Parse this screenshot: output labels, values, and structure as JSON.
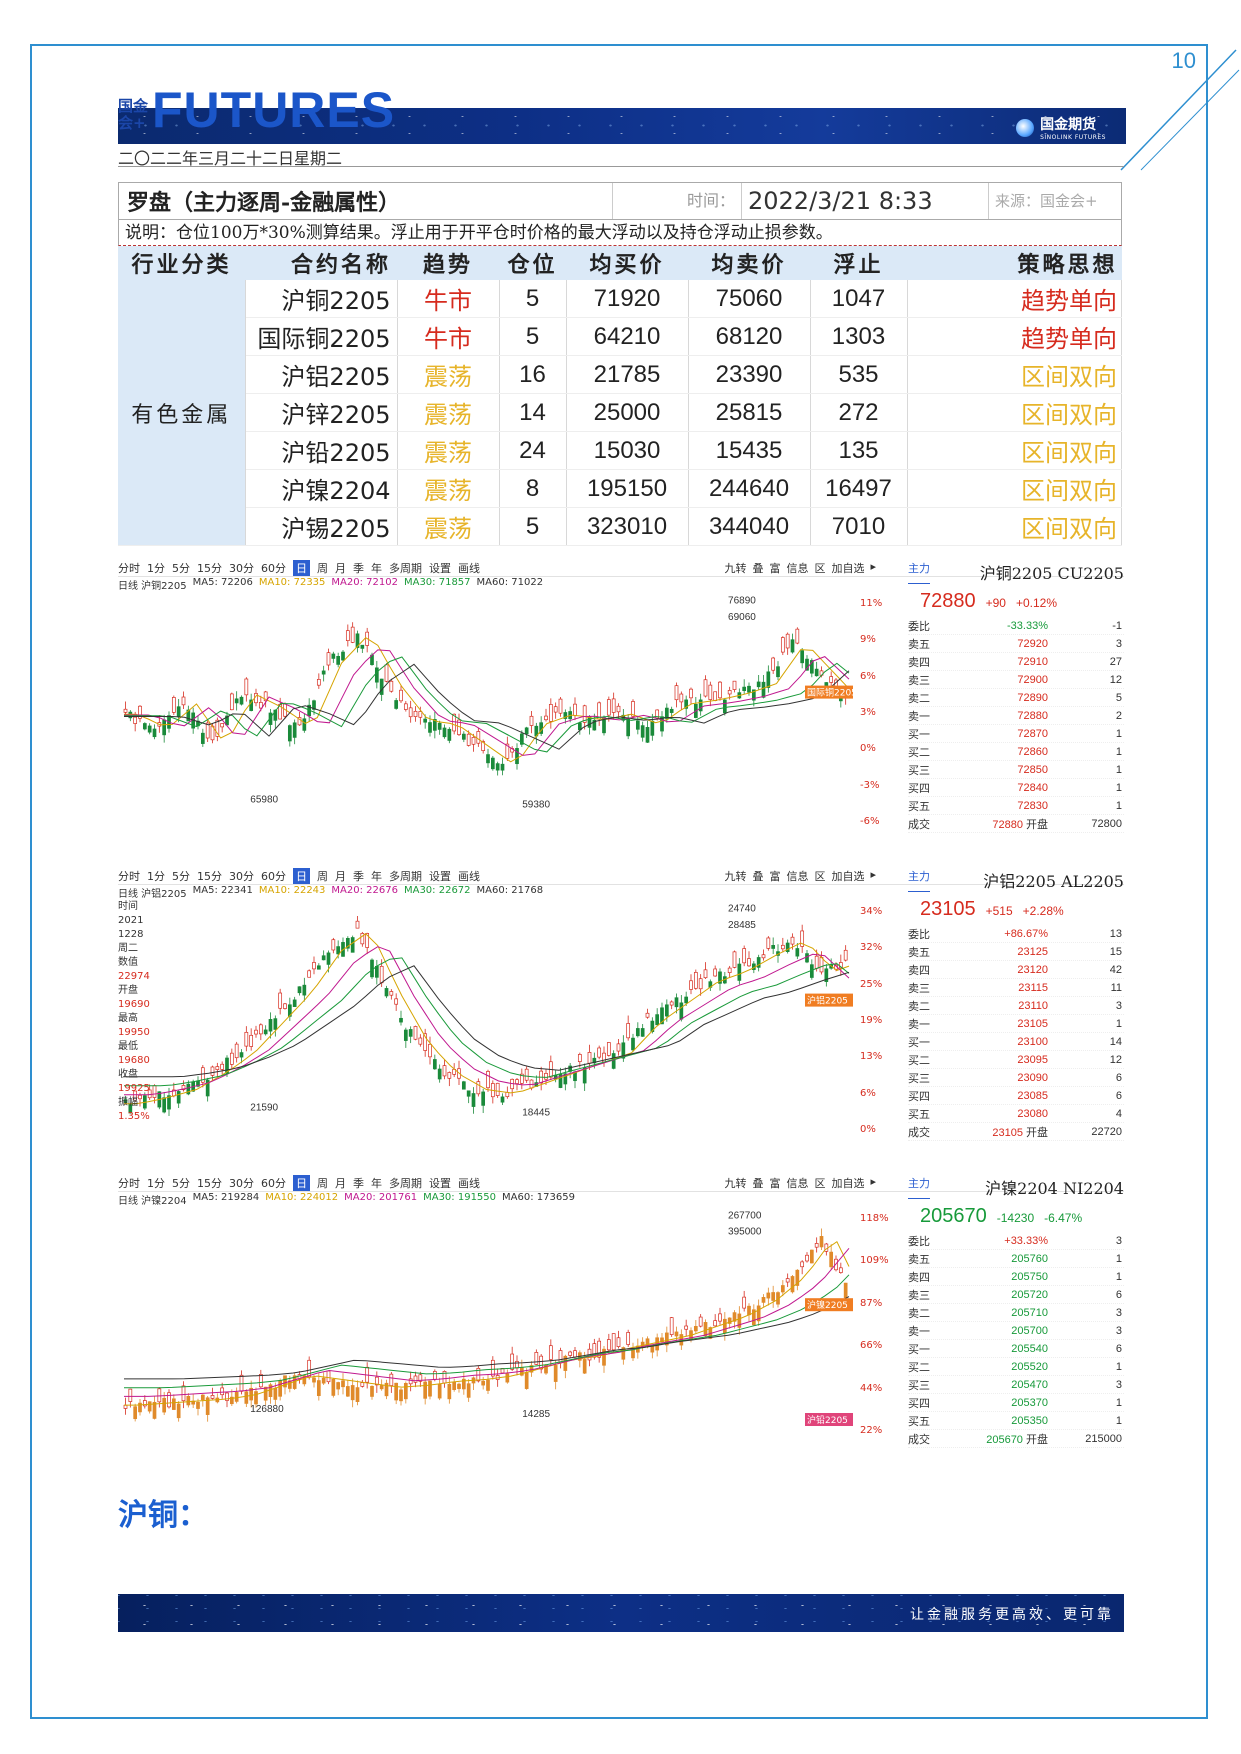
{
  "page_number": "10",
  "header": {
    "logo_small": "国金会+",
    "logo_word": "FUTURES",
    "brand": "国金期货",
    "brand_sub": "SINOLINK FUTURES",
    "date": "二〇二二年三月二十二日星期二"
  },
  "table": {
    "title": "罗盘（主力逐周-金融属性）",
    "time_label": "时间：",
    "time_value": "2022/3/21 8:33",
    "source": "来源：国金会+",
    "note": "说明：仓位100万*30%测算结果。浮止用于开平仓时价格的最大浮动以及持仓浮动止损参数。",
    "columns": [
      "行业分类",
      "合约名称",
      "趋势",
      "仓位",
      "均买价",
      "均卖价",
      "浮止",
      "策略思想"
    ],
    "category": "有色金属",
    "rows": [
      {
        "name": "沪铜2205",
        "trend": "牛市",
        "trend_type": "bull",
        "pos": "5",
        "buy": "71920",
        "sell": "75060",
        "stop": "1047",
        "strategy": "趋势单向"
      },
      {
        "name": "国际铜2205",
        "trend": "牛市",
        "trend_type": "bull",
        "pos": "5",
        "buy": "64210",
        "sell": "68120",
        "stop": "1303",
        "strategy": "趋势单向"
      },
      {
        "name": "沪铝2205",
        "trend": "震荡",
        "trend_type": "range",
        "pos": "16",
        "buy": "21785",
        "sell": "23390",
        "stop": "535",
        "strategy": "区间双向"
      },
      {
        "name": "沪锌2205",
        "trend": "震荡",
        "trend_type": "range",
        "pos": "14",
        "buy": "25000",
        "sell": "25815",
        "stop": "272",
        "strategy": "区间双向"
      },
      {
        "name": "沪铅2205",
        "trend": "震荡",
        "trend_type": "range",
        "pos": "24",
        "buy": "15030",
        "sell": "15435",
        "stop": "135",
        "strategy": "区间双向"
      },
      {
        "name": "沪镍2204",
        "trend": "震荡",
        "trend_type": "range",
        "pos": "8",
        "buy": "195150",
        "sell": "244640",
        "stop": "16497",
        "strategy": "区间双向"
      },
      {
        "name": "沪锡2205",
        "trend": "震荡",
        "trend_type": "range",
        "pos": "5",
        "buy": "323010",
        "sell": "344040",
        "stop": "7010",
        "strategy": "区间双向"
      }
    ]
  },
  "toolbar": {
    "items": [
      "分时",
      "1分",
      "5分",
      "15分",
      "30分",
      "60分",
      "日",
      "周",
      "月",
      "季",
      "年",
      "多周期",
      "设置",
      "画线"
    ],
    "active": "日",
    "right": [
      "九转",
      "叠",
      "富",
      "信息",
      "区",
      "加自选"
    ]
  },
  "charts": [
    {
      "id": "cu",
      "tag": "主力",
      "title": "沪铜2205 CU2205",
      "ma_prefix": "日线 沪铜2205",
      "ma": [
        {
          "k": "MA5:",
          "v": "72206"
        },
        {
          "k": "MA10:",
          "v": "72335"
        },
        {
          "k": "MA20:",
          "v": "72102"
        },
        {
          "k": "MA30:",
          "v": "71857"
        },
        {
          "k": "MA60:",
          "v": "71022"
        }
      ],
      "pct_ticks": [
        "11%",
        "9%",
        "6%",
        "3%",
        "0%",
        "-3%",
        "-6%"
      ],
      "annotations": [
        "76890",
        "69060",
        "65980",
        "59380"
      ],
      "badge": "国际铜2205",
      "last": "72880",
      "chg": "+90",
      "chg_pct": "+0.12%",
      "ratio": "-33.33%",
      "ratio_v": "-1",
      "book": [
        {
          "l": "卖五",
          "p": "72920",
          "v": "3"
        },
        {
          "l": "卖四",
          "p": "72910",
          "v": "27"
        },
        {
          "l": "卖三",
          "p": "72900",
          "v": "12"
        },
        {
          "l": "卖二",
          "p": "72890",
          "v": "5"
        },
        {
          "l": "卖一",
          "p": "72880",
          "v": "2"
        },
        {
          "l": "买一",
          "p": "72870",
          "v": "1"
        },
        {
          "l": "买二",
          "p": "72860",
          "v": "1"
        },
        {
          "l": "买三",
          "p": "72850",
          "v": "1"
        },
        {
          "l": "买四",
          "p": "72840",
          "v": "1"
        },
        {
          "l": "买五",
          "p": "72830",
          "v": "1"
        }
      ],
      "last_row": {
        "l": "成交",
        "p": "72880",
        "mid": "开盘",
        "v": "72800"
      }
    },
    {
      "id": "al",
      "tag": "主力",
      "title": "沪铝2205 AL2205",
      "ma_prefix": "日线 沪铝2205",
      "ma": [
        {
          "k": "MA5:",
          "v": "22341"
        },
        {
          "k": "MA10:",
          "v": "22243"
        },
        {
          "k": "MA20:",
          "v": "22676"
        },
        {
          "k": "MA30:",
          "v": "22672"
        },
        {
          "k": "MA60:",
          "v": "21768"
        }
      ],
      "pct_ticks": [
        "34%",
        "32%",
        "25%",
        "19%",
        "13%",
        "6%",
        "0%"
      ],
      "annotations": [
        "24740",
        "28485",
        "21590",
        "18445"
      ],
      "badge": "沪铝2205",
      "info": [
        "时间",
        "2021",
        "1228",
        "周二",
        "数值",
        "22974",
        "开盘",
        "19690",
        "最高",
        "19950",
        "最低",
        "19680",
        "收盘",
        "19925",
        "振幅",
        "1.35%"
      ],
      "last": "23105",
      "chg": "+515",
      "chg_pct": "+2.28%",
      "ratio": "+86.67%",
      "ratio_v": "13",
      "book": [
        {
          "l": "卖五",
          "p": "23125",
          "v": "15"
        },
        {
          "l": "卖四",
          "p": "23120",
          "v": "42"
        },
        {
          "l": "卖三",
          "p": "23115",
          "v": "11"
        },
        {
          "l": "卖二",
          "p": "23110",
          "v": "3"
        },
        {
          "l": "卖一",
          "p": "23105",
          "v": "1"
        },
        {
          "l": "买一",
          "p": "23100",
          "v": "14"
        },
        {
          "l": "买二",
          "p": "23095",
          "v": "12"
        },
        {
          "l": "买三",
          "p": "23090",
          "v": "6"
        },
        {
          "l": "买四",
          "p": "23085",
          "v": "6"
        },
        {
          "l": "买五",
          "p": "23080",
          "v": "4"
        }
      ],
      "last_row": {
        "l": "成交",
        "p": "23105",
        "mid": "开盘",
        "v": "22720"
      }
    },
    {
      "id": "ni",
      "tag": "主力",
      "title": "沪镍2204 NI2204",
      "ma_prefix": "日线 沪镍2204",
      "ma": [
        {
          "k": "MA5:",
          "v": "219284"
        },
        {
          "k": "MA10:",
          "v": "224012"
        },
        {
          "k": "MA20:",
          "v": "201761"
        },
        {
          "k": "MA30:",
          "v": "191550"
        },
        {
          "k": "MA60:",
          "v": "173659"
        }
      ],
      "pct_ticks": [
        "118%",
        "109%",
        "87%",
        "66%",
        "44%",
        "22%"
      ],
      "annotations": [
        "267700",
        "395000",
        "126880",
        "14285"
      ],
      "badge": "沪镍2205",
      "badge2": "沪铅2205",
      "last": "205670",
      "chg": "-14230",
      "chg_pct": "-6.47%",
      "ratio": "+33.33%",
      "ratio_v": "3",
      "book": [
        {
          "l": "卖五",
          "p": "205760",
          "v": "1"
        },
        {
          "l": "卖四",
          "p": "205750",
          "v": "1"
        },
        {
          "l": "卖三",
          "p": "205720",
          "v": "6"
        },
        {
          "l": "卖二",
          "p": "205710",
          "v": "3"
        },
        {
          "l": "卖一",
          "p": "205700",
          "v": "3"
        },
        {
          "l": "买一",
          "p": "205540",
          "v": "6"
        },
        {
          "l": "买二",
          "p": "205520",
          "v": "1"
        },
        {
          "l": "买三",
          "p": "205470",
          "v": "3"
        },
        {
          "l": "买四",
          "p": "205370",
          "v": "1"
        },
        {
          "l": "买五",
          "p": "205350",
          "v": "1"
        }
      ],
      "last_row": {
        "l": "成交",
        "p": "205670",
        "mid": "开盘",
        "v": "215000"
      }
    }
  ],
  "section_heading": "沪铜：",
  "footer": "让金融服务更高效、更可靠",
  "colors": {
    "frame": "#2e8fd0",
    "bull": "#d62b1e",
    "range": "#e7b42a",
    "banner": "#0d2f86"
  }
}
